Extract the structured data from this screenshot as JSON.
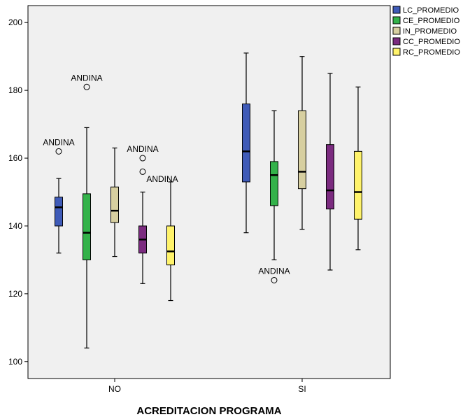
{
  "chart_data": {
    "type": "boxplot",
    "title": "",
    "xlabel": "ACREDITACION PROGRAMA",
    "ylabel": "",
    "ylim": [
      95,
      205
    ],
    "yticks": [
      100,
      120,
      140,
      160,
      180,
      200
    ],
    "grid": false,
    "legend_position": "top-right",
    "categories": [
      "NO",
      "SI"
    ],
    "series": [
      {
        "name": "LC_PROMEDIO",
        "color": "#3F5BB8",
        "boxes": [
          {
            "category": "NO",
            "min": 132,
            "q1": 140,
            "median": 145.5,
            "q3": 148.5,
            "max": 154,
            "outliers": [
              {
                "value": 162,
                "label": "ANDINA"
              }
            ]
          },
          {
            "category": "SI",
            "min": 138,
            "q1": 153,
            "median": 162,
            "q3": 176,
            "max": 191,
            "outliers": []
          }
        ]
      },
      {
        "name": "CE_PROMEDIO",
        "color": "#33B24A",
        "boxes": [
          {
            "category": "NO",
            "min": 104,
            "q1": 130,
            "median": 138,
            "q3": 149.5,
            "max": 169,
            "outliers": [
              {
                "value": 181,
                "label": "ANDINA"
              }
            ]
          },
          {
            "category": "SI",
            "min": 130,
            "q1": 146,
            "median": 155,
            "q3": 159,
            "max": 174,
            "outliers": [
              {
                "value": 124,
                "label": "ANDINA"
              }
            ]
          }
        ]
      },
      {
        "name": "IN_PROMEDIO",
        "color": "#D7CFA0",
        "boxes": [
          {
            "category": "NO",
            "min": 131,
            "q1": 141,
            "median": 144.5,
            "q3": 151.5,
            "max": 163,
            "outliers": []
          },
          {
            "category": "SI",
            "min": 139,
            "q1": 151,
            "median": 156,
            "q3": 174,
            "max": 190,
            "outliers": []
          }
        ]
      },
      {
        "name": "CC_PROMEDIO",
        "color": "#7B2B7F",
        "boxes": [
          {
            "category": "NO",
            "min": 123,
            "q1": 132,
            "median": 136,
            "q3": 140,
            "max": 150,
            "outliers": [
              {
                "value": 160,
                "label": "ANDINA"
              },
              {
                "value": 156,
                "label": ""
              }
            ]
          },
          {
            "category": "SI",
            "min": 127,
            "q1": 145,
            "median": 150.5,
            "q3": 164,
            "max": 185,
            "outliers": []
          }
        ]
      },
      {
        "name": "RC_PROMEDIO",
        "color": "#FFF36B",
        "boxes": [
          {
            "category": "NO",
            "min": 118,
            "q1": 128.5,
            "median": 132.5,
            "q3": 140,
            "max": 153,
            "outliers": []
          },
          {
            "category": "SI",
            "min": 133,
            "q1": 142,
            "median": 150,
            "q3": 162,
            "max": 181,
            "outliers": []
          }
        ]
      }
    ],
    "extra_annotations": [
      {
        "text": "ANDINA",
        "category": "NO",
        "series": "RC_PROMEDIO",
        "value": 154
      }
    ]
  }
}
